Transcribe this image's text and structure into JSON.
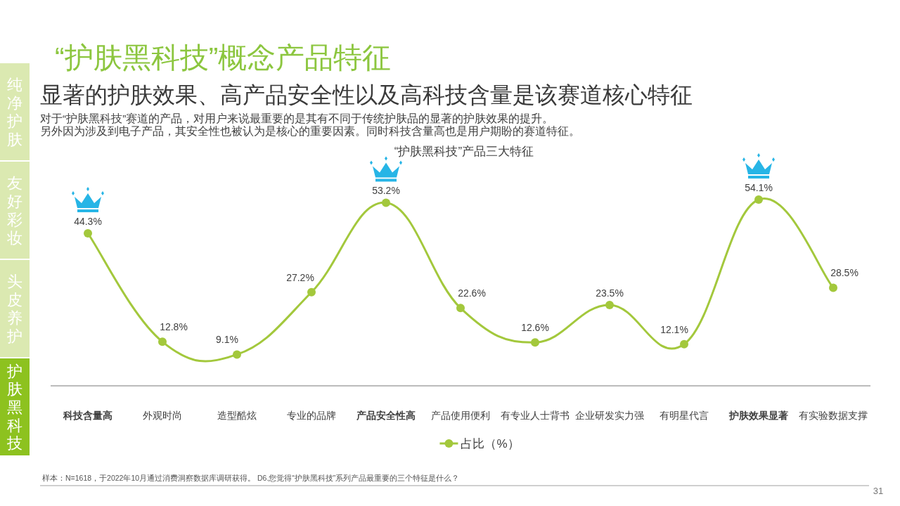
{
  "chart_data": {
    "type": "line",
    "title": "“护肤黑科技”概念产品特征",
    "subtitle": "显著的护肤效果、高产品安全性以及高科技含量是该赛道核心特征",
    "annotations": [
      "对于“护肤黑科技”赛道的产品，对用户来说最重要的是其有不同于传统护肤品的显著的护肤效果的提升。",
      "另外因为涉及到电子产品，其安全性也被认为是核心的重要因素。同时科技含量高也是用户期盼的赛道特征。",
      "“护肤黑科技”产品三大特征",
      "样本：N=1618，于2022年10月通过消费洞察数据库调研获得。 D6.您觉得“护肤黑科技”系列产品最重要的三个特征是什么？",
      "31",
      "纯净护肤",
      "友好彩妆",
      "头皮养护",
      "护肤黑科技"
    ],
    "categories": [
      "科技含量高",
      "外观时尚",
      "造型酷炫",
      "专业的品牌",
      "产品安全性高",
      "产品使用便利",
      "有专业人士背书",
      "企业研发实力强",
      "有明星代言",
      "护肤效果显著",
      "有实验数据支撑"
    ],
    "series": [
      {
        "name": "占比（%）",
        "color": "#a3c83c",
        "values": [
          44.3,
          12.8,
          9.1,
          27.2,
          53.2,
          22.6,
          12.6,
          23.5,
          12.1,
          54.1,
          28.5
        ],
        "value_labels": [
          "44.3%",
          "12.8%",
          "9.1%",
          "27.2%",
          "53.2%",
          "22.6%",
          "12.6%",
          "23.5%",
          "12.1%",
          "54.1%",
          "28.5%"
        ]
      }
    ],
    "tick_labels": "x",
    "legend": "bottom",
    "marker": "circle",
    "line_style": "solid"
  }
}
